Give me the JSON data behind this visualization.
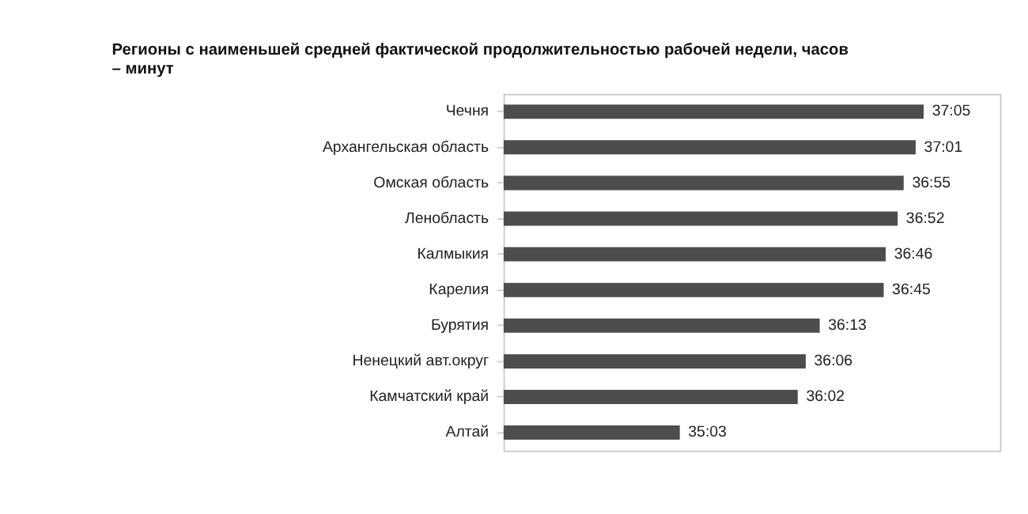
{
  "chart_data": {
    "type": "bar",
    "orientation": "horizontal",
    "title": "Регионы с наименьшей средней фактической продолжительностью рабочей недели, часов – минут",
    "categories": [
      "Чечня",
      "Архангельская область",
      "Омская область",
      "Ленобласть",
      "Калмыкия",
      "Карелия",
      "Бурятия",
      "Ненецкий авт.округ",
      "Камчатский край",
      "Алтай"
    ],
    "values": [
      37.0833,
      37.0167,
      36.9167,
      36.8667,
      36.7667,
      36.75,
      36.2167,
      36.1,
      36.0333,
      35.05
    ],
    "value_labels": [
      "37:05",
      "37:01",
      "36:55",
      "36:52",
      "36:46",
      "36:45",
      "36:13",
      "36:06",
      "36:02",
      "35:03"
    ],
    "color": "#4d4d4d",
    "xlim": [
      33.58,
      37.72
    ]
  }
}
